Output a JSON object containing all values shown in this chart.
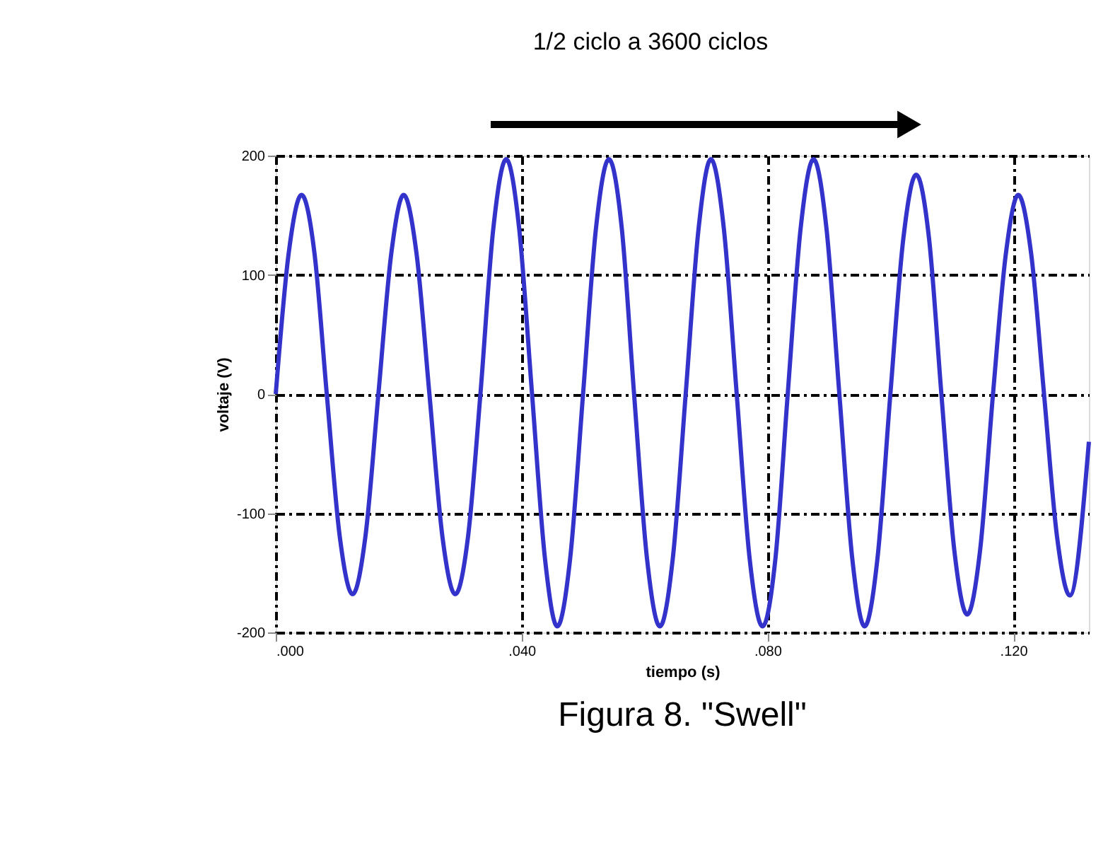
{
  "chart_data": {
    "type": "line",
    "title": "Figura 8.  \"Swell\"",
    "xlabel": "tiempo (s)",
    "ylabel": "voltaje (V)",
    "annotations": [
      "1/2 ciclo a 3600 ciclos"
    ],
    "x": [
      0.0,
      0.0021,
      0.0042,
      0.0063,
      0.0083,
      0.0104,
      0.0125,
      0.0146,
      0.0167,
      0.0188,
      0.0208,
      0.0229,
      0.025,
      0.0271,
      0.0292,
      0.0313,
      0.0333,
      0.0354,
      0.0375,
      0.0396,
      0.0417,
      0.0438,
      0.0458,
      0.0479,
      0.05,
      0.0521,
      0.0542,
      0.0563,
      0.0583,
      0.0604,
      0.0625,
      0.0646,
      0.0667,
      0.0688,
      0.0708,
      0.0729,
      0.075,
      0.0771,
      0.0792,
      0.0813,
      0.0833,
      0.0854,
      0.0875,
      0.0896,
      0.0917,
      0.0938,
      0.0958,
      0.0979,
      0.1,
      0.1021,
      0.1042,
      0.1063,
      0.1083,
      0.1104,
      0.1125,
      0.1146,
      0.1167,
      0.1188,
      0.1208,
      0.1229,
      0.125,
      0.1271,
      0.1292,
      0.1323
    ],
    "series": [
      {
        "color": "#3333cc",
        "values": [
          0,
          118,
          167,
          118,
          0,
          -119,
          -168,
          -119,
          0,
          118,
          167,
          118,
          0,
          -119,
          -168,
          -119,
          0,
          139,
          197,
          139,
          0,
          -138,
          -195,
          -138,
          0,
          139,
          197,
          139,
          0,
          -138,
          -195,
          -138,
          0,
          139,
          197,
          139,
          0,
          -138,
          -195,
          -138,
          0,
          139,
          197,
          139,
          0,
          -138,
          -195,
          -138,
          0,
          130,
          184,
          130,
          0,
          -131,
          -185,
          -131,
          0,
          118,
          167,
          118,
          0,
          -119,
          -169,
          -40
        ]
      }
    ],
    "xlim": [
      0,
      0.1323
    ],
    "xticks": [
      {
        "value": 0,
        "label": ".000"
      },
      {
        "value": 0.04,
        "label": ".040"
      },
      {
        "value": 0.08,
        "label": ".080"
      },
      {
        "value": 0.12,
        "label": ".120"
      }
    ],
    "ylim": [
      -200,
      200
    ],
    "yticks": [
      -200,
      -100,
      0,
      100,
      200
    ],
    "grid": true,
    "line_style": "solid",
    "marker": "none",
    "legend": false
  }
}
